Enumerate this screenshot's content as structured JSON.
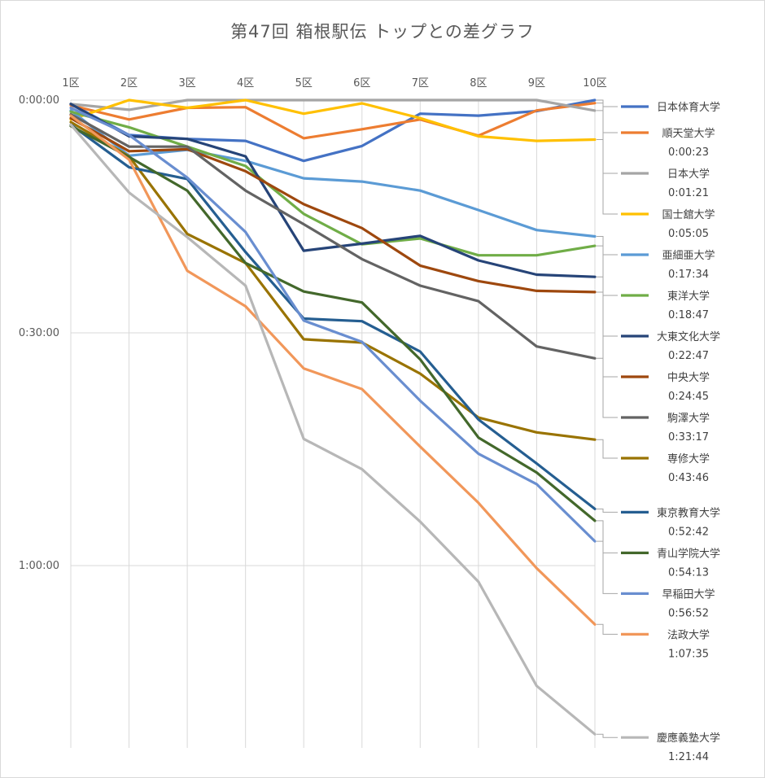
{
  "chart_data": {
    "type": "line",
    "title": "第47回 箱根駅伝 トップとの差グラフ",
    "xlabel": "",
    "ylabel": "",
    "categories": [
      "1区",
      "2区",
      "3区",
      "4区",
      "5区",
      "6区",
      "7区",
      "8区",
      "9区",
      "10区"
    ],
    "y_unit": "seconds behind leader",
    "y_reversed": true,
    "ylim": [
      0,
      4900
    ],
    "y_ticks": [
      0,
      1800,
      3600
    ],
    "y_tick_labels": [
      "0:00:00",
      "0:30:00",
      "1:00:00"
    ],
    "grid": {
      "vertical": true,
      "horizontal": true
    },
    "legend_position": "right",
    "series": [
      {
        "name": "日本体育大学",
        "color": "#4472c4",
        "final_gap": "",
        "values": [
          30,
          270,
          300,
          315,
          470,
          355,
          105,
          120,
          85,
          0
        ]
      },
      {
        "name": "順天堂大学",
        "color": "#ed7d31",
        "final_gap": "0:00:23",
        "values": [
          40,
          150,
          60,
          55,
          295,
          225,
          150,
          275,
          80,
          23
        ]
      },
      {
        "name": "日本大学",
        "color": "#a5a5a5",
        "final_gap": "0:01:21",
        "values": [
          30,
          75,
          0,
          0,
          0,
          0,
          0,
          0,
          0,
          81
        ]
      },
      {
        "name": "国士舘大学",
        "color": "#ffc000",
        "final_gap": "0:05:05",
        "values": [
          150,
          0,
          60,
          0,
          105,
          25,
          140,
          280,
          315,
          305
        ]
      },
      {
        "name": "亜細亜大学",
        "color": "#5b9bd5",
        "final_gap": "0:17:34",
        "values": [
          80,
          430,
          385,
          470,
          605,
          630,
          700,
          850,
          1005,
          1054
        ]
      },
      {
        "name": "東洋大学",
        "color": "#70ad47",
        "final_gap": "0:18:47",
        "values": [
          90,
          210,
          360,
          510,
          880,
          1115,
          1070,
          1200,
          1200,
          1127
        ]
      },
      {
        "name": "大東文化大学",
        "color": "#264478",
        "final_gap": "0:22:47",
        "values": [
          30,
          280,
          300,
          435,
          1165,
          1110,
          1050,
          1240,
          1350,
          1367
        ]
      },
      {
        "name": "中央大学",
        "color": "#9e480e",
        "final_gap": "0:24:45",
        "values": [
          140,
          395,
          380,
          550,
          805,
          990,
          1280,
          1400,
          1475,
          1485
        ]
      },
      {
        "name": "駒澤大学",
        "color": "#636363",
        "final_gap": "0:33:17",
        "values": [
          110,
          360,
          360,
          700,
          960,
          1230,
          1435,
          1555,
          1905,
          1997
        ]
      },
      {
        "name": "専修大学",
        "color": "#997300",
        "final_gap": "0:43:46",
        "values": [
          170,
          435,
          1035,
          1260,
          1850,
          1875,
          2115,
          2455,
          2570,
          2626
        ]
      },
      {
        "name": "東京教育大学",
        "color": "#255e91",
        "final_gap": "0:52:42",
        "values": [
          190,
          520,
          610,
          1175,
          1690,
          1710,
          1945,
          2470,
          2810,
          3162
        ]
      },
      {
        "name": "青山学院大学",
        "color": "#43682b",
        "final_gap": "0:54:13",
        "values": [
          200,
          440,
          700,
          1260,
          1480,
          1565,
          2005,
          2610,
          2880,
          3253
        ]
      },
      {
        "name": "早稲田大学",
        "color": "#698ed0",
        "final_gap": "0:56:52",
        "values": [
          60,
          270,
          600,
          1020,
          1705,
          1870,
          2325,
          2735,
          2970,
          3412
        ]
      },
      {
        "name": "法政大学",
        "color": "#f1975a",
        "final_gap": "1:07:35",
        "values": [
          120,
          460,
          1320,
          1595,
          2075,
          2235,
          2680,
          3115,
          3620,
          4055
        ]
      },
      {
        "name": "慶應義塾大学",
        "color": "#b7b7b7",
        "final_gap": "1:21:44",
        "values": [
          190,
          715,
          1060,
          1435,
          2620,
          2855,
          3260,
          3725,
          4530,
          4904
        ]
      }
    ]
  }
}
